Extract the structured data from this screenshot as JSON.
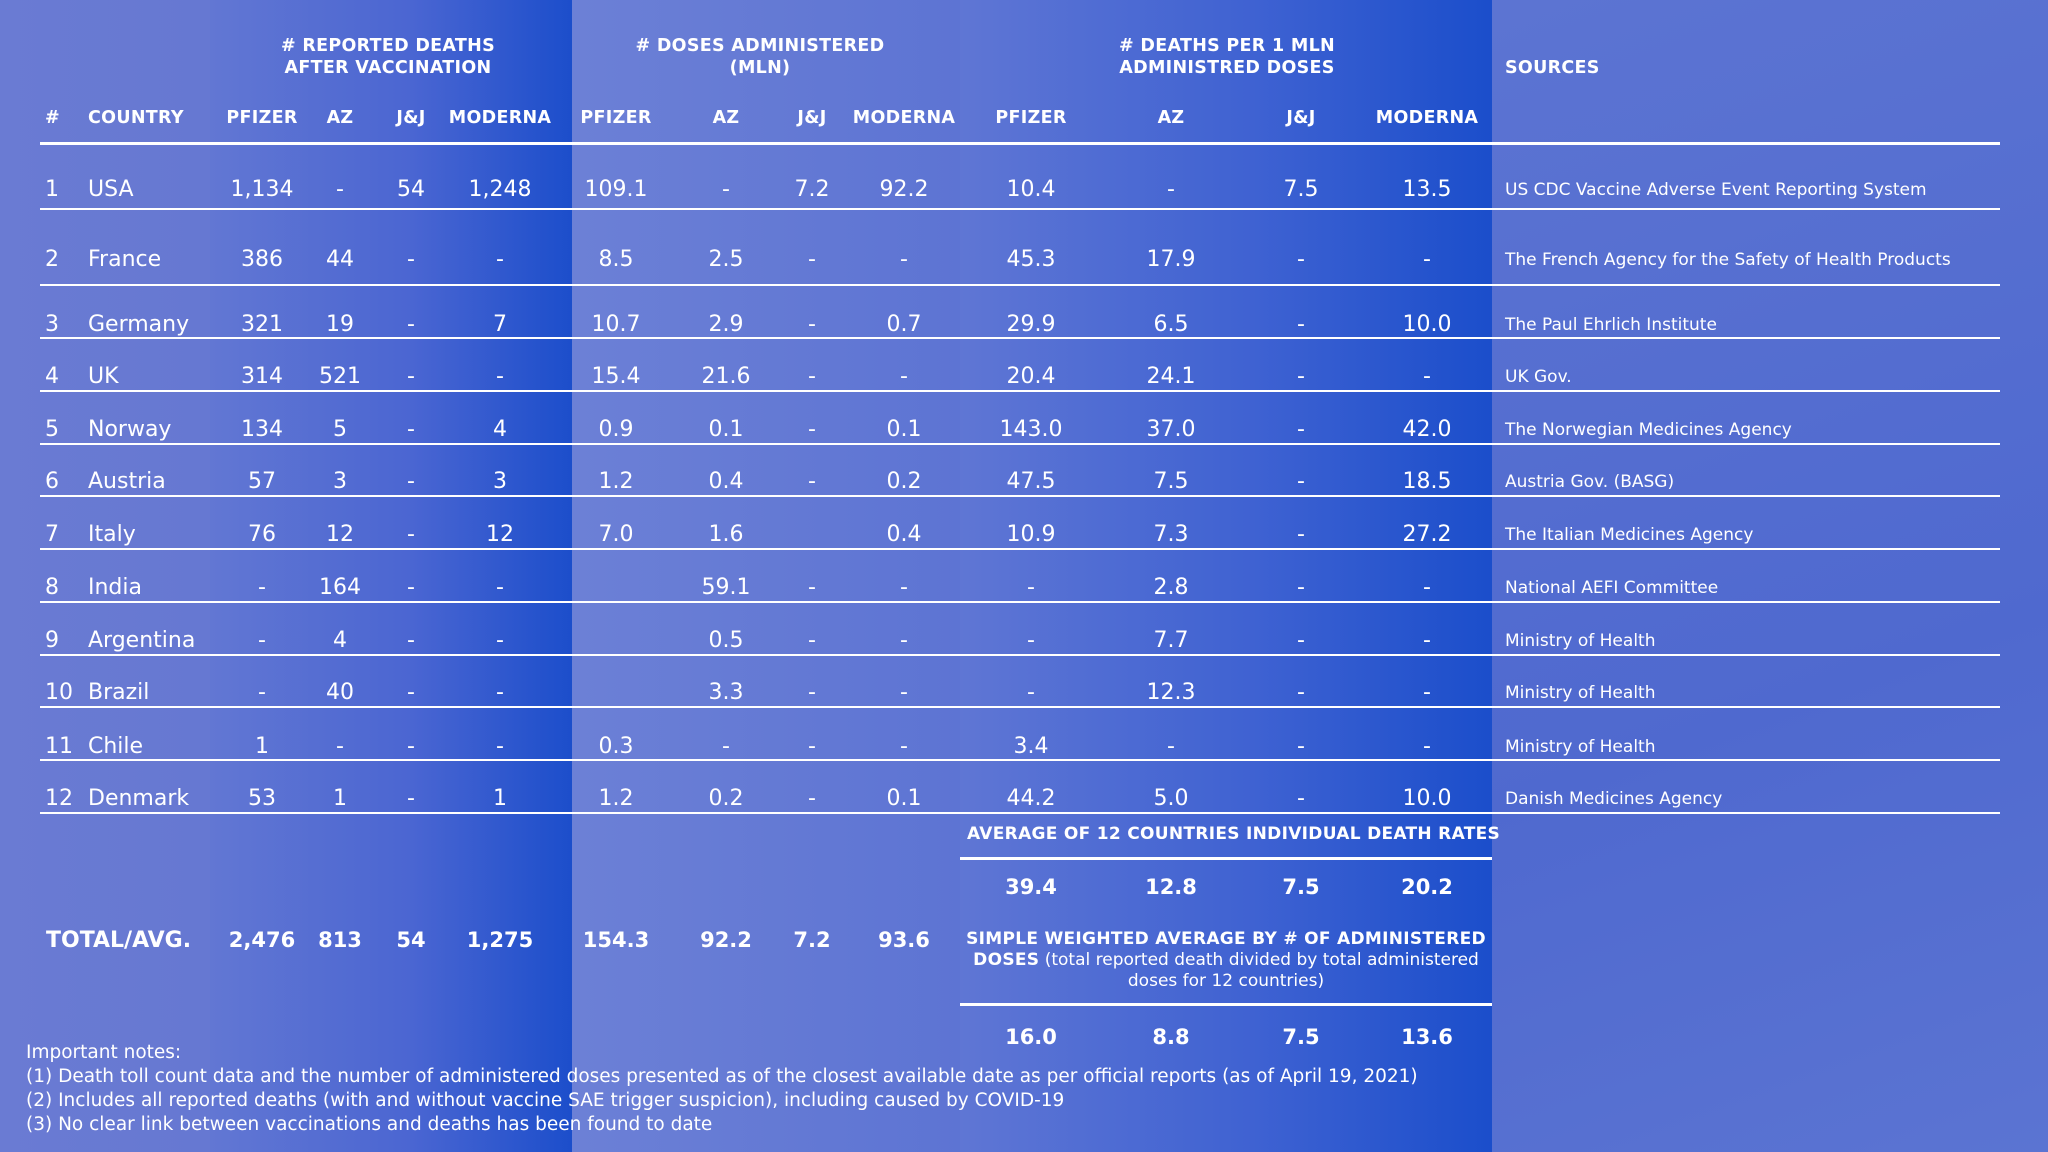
{
  "header": {
    "groups": {
      "deaths_line1": "# REPORTED DEATHS",
      "deaths_line2": "AFTER VACCINATION",
      "doses_line1": "# DOSES ADMINISTERED",
      "doses_line2": "(MLN)",
      "rate_line1": "# DEATHS PER 1 MLN",
      "rate_line2": "ADMINISTRED DOSES",
      "sources": "SOURCES"
    },
    "columns": {
      "num": "#",
      "country": "COUNTRY",
      "pfizer": "PFIZER",
      "az": "AZ",
      "jj": "J&J",
      "moderna": "MODERNA"
    }
  },
  "rows": [
    {
      "n": "1",
      "country": "USA",
      "d": [
        "1,134",
        "-",
        "54",
        "1,248"
      ],
      "v": [
        "109.1",
        "-",
        "7.2",
        "92.2"
      ],
      "r": [
        "10.4",
        "-",
        "7.5",
        "13.5"
      ],
      "source": "US CDC Vaccine Adverse Event Reporting System"
    },
    {
      "n": "2",
      "country": "France",
      "d": [
        "386",
        "44",
        "-",
        "-"
      ],
      "v": [
        "8.5",
        "2.5",
        "-",
        "-"
      ],
      "r": [
        "45.3",
        "17.9",
        "-",
        "-"
      ],
      "source": "The French Agency for the Safety of Health Products"
    },
    {
      "n": "3",
      "country": "Germany",
      "d": [
        "321",
        "19",
        "-",
        "7"
      ],
      "v": [
        "10.7",
        "2.9",
        "-",
        "0.7"
      ],
      "r": [
        "29.9",
        "6.5",
        "-",
        "10.0"
      ],
      "source": "The Paul Ehrlich Institute"
    },
    {
      "n": "4",
      "country": "UK",
      "d": [
        "314",
        "521",
        "-",
        "-"
      ],
      "v": [
        "15.4",
        "21.6",
        "-",
        "-"
      ],
      "r": [
        "20.4",
        "24.1",
        "-",
        "-"
      ],
      "source": "UK Gov."
    },
    {
      "n": "5",
      "country": "Norway",
      "d": [
        "134",
        "5",
        "-",
        "4"
      ],
      "v": [
        "0.9",
        "0.1",
        "-",
        "0.1"
      ],
      "r": [
        "143.0",
        "37.0",
        "-",
        "42.0"
      ],
      "source": "The Norwegian Medicines Agency"
    },
    {
      "n": "6",
      "country": "Austria",
      "d": [
        "57",
        "3",
        "-",
        "3"
      ],
      "v": [
        "1.2",
        "0.4",
        "-",
        "0.2"
      ],
      "r": [
        "47.5",
        "7.5",
        "-",
        "18.5"
      ],
      "source": "Austria Gov. (BASG)"
    },
    {
      "n": "7",
      "country": "Italy",
      "d": [
        "76",
        "12",
        "-",
        "12"
      ],
      "v": [
        "7.0",
        "1.6",
        "",
        "0.4"
      ],
      "r": [
        "10.9",
        "7.3",
        "-",
        "27.2"
      ],
      "source": "The Italian Medicines Agency"
    },
    {
      "n": "8",
      "country": "India",
      "d": [
        "-",
        "164",
        "-",
        "-"
      ],
      "v": [
        "",
        "59.1",
        "-",
        "-"
      ],
      "r": [
        "-",
        "2.8",
        "-",
        "-"
      ],
      "source": "National AEFI Committee"
    },
    {
      "n": "9",
      "country": "Argentina",
      "d": [
        "-",
        "4",
        "-",
        "-"
      ],
      "v": [
        "",
        "0.5",
        "-",
        "-"
      ],
      "r": [
        "-",
        "7.7",
        "-",
        "-"
      ],
      "source": "Ministry of Health"
    },
    {
      "n": "10",
      "country": "Brazil",
      "d": [
        "-",
        "40",
        "-",
        "-"
      ],
      "v": [
        "",
        "3.3",
        "-",
        "-"
      ],
      "r": [
        "-",
        "12.3",
        "-",
        "-"
      ],
      "source": "Ministry of Health"
    },
    {
      "n": "11",
      "country": "Chile",
      "d": [
        "1",
        "-",
        "-",
        "-"
      ],
      "v": [
        "0.3",
        "-",
        "-",
        "-"
      ],
      "r": [
        "3.4",
        "-",
        "-",
        "-"
      ],
      "source": "Ministry of Health"
    },
    {
      "n": "12",
      "country": "Denmark",
      "d": [
        "53",
        "1",
        "-",
        "1"
      ],
      "v": [
        "1.2",
        "0.2",
        "-",
        "0.1"
      ],
      "r": [
        "44.2",
        "5.0",
        "-",
        "10.0"
      ],
      "source": "Danish Medicines Agency"
    }
  ],
  "totals": {
    "label": "TOTAL/AVG.",
    "d": [
      "2,476",
      "813",
      "54",
      "1,275"
    ],
    "v": [
      "154.3",
      "92.2",
      "7.2",
      "93.6"
    ]
  },
  "averages": {
    "simple_label": "AVERAGE OF 12 COUNTRIES INDIVIDUAL DEATH RATES",
    "simple_values": [
      "39.4",
      "12.8",
      "7.5",
      "20.2"
    ],
    "weighted_label_bold": "SIMPLE WEIGHTED AVERAGE BY # OF ADMINISTERED",
    "weighted_label_bold2": "DOSES",
    "weighted_label_note1": "(total reported death divided by total administered",
    "weighted_label_note2": "doses for 12 countries)",
    "weighted_values": [
      "16.0",
      "8.8",
      "7.5",
      "13.6"
    ]
  },
  "notes": {
    "title": "Important notes:",
    "items": [
      "(1) Death toll count data and the number of administered doses presented as of the closest available date as per official reports (as of April 19, 2021)",
      "(2) Includes all reported deaths (with and without vaccine SAE trigger suspicion), including caused by COVID-19",
      "(3) No clear link between vaccinations and deaths has been found to date"
    ]
  }
}
